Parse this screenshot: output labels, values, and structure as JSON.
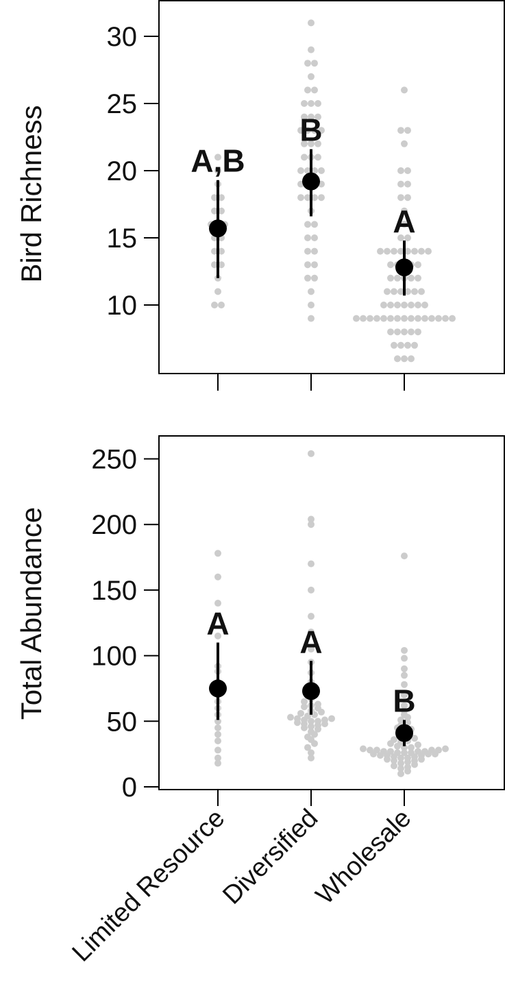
{
  "chart_data": [
    {
      "type": "scatter",
      "title": "",
      "ylabel": "Bird Richness",
      "ylim": [
        5,
        32
      ],
      "yticks": [
        10,
        15,
        20,
        25,
        30
      ],
      "categories": [
        "Limited Resource",
        "Diversified",
        "Wholesale"
      ],
      "point_color": "#cccccc",
      "summary_color": "#000000",
      "series": [
        {
          "category": "Limited Resource",
          "mean": 15.7,
          "lower": 12.0,
          "upper": 19.3,
          "letter": "A,B",
          "points": [
            10,
            10,
            11,
            12,
            13,
            13,
            14,
            14,
            15,
            15,
            16,
            16,
            16,
            17,
            17,
            18,
            18,
            19,
            20,
            21
          ]
        },
        {
          "category": "Diversified",
          "mean": 19.2,
          "lower": 16.6,
          "upper": 21.6,
          "letter": "B",
          "points": [
            9,
            10,
            11,
            12,
            12,
            13,
            13,
            14,
            14,
            15,
            15,
            16,
            16,
            17,
            18,
            18,
            18,
            18,
            19,
            19,
            19,
            19,
            20,
            20,
            20,
            20,
            21,
            21,
            21,
            22,
            22,
            22,
            23,
            23,
            23,
            23,
            24,
            24,
            24,
            25,
            25,
            25,
            26,
            26,
            27,
            28,
            28,
            29,
            31
          ]
        },
        {
          "category": "Wholesale",
          "mean": 12.8,
          "lower": 10.7,
          "upper": 14.8,
          "letter": "A",
          "points": [
            6,
            6,
            6,
            7,
            7,
            7,
            7,
            8,
            8,
            8,
            8,
            8,
            9,
            9,
            9,
            9,
            9,
            9,
            9,
            9,
            9,
            9,
            9,
            9,
            9,
            9,
            9,
            10,
            10,
            10,
            10,
            10,
            10,
            10,
            11,
            11,
            11,
            11,
            11,
            11,
            12,
            12,
            12,
            12,
            12,
            13,
            13,
            13,
            13,
            13,
            14,
            14,
            14,
            14,
            14,
            14,
            14,
            14,
            15,
            15,
            16,
            17,
            18,
            18,
            19,
            19,
            20,
            20,
            22,
            23,
            23,
            26
          ]
        }
      ]
    },
    {
      "type": "scatter",
      "title": "",
      "ylabel": "Total Abundance",
      "ylim": [
        -5,
        265
      ],
      "yticks": [
        0,
        50,
        100,
        150,
        200,
        250
      ],
      "categories": [
        "Limited Resource",
        "Diversified",
        "Wholesale"
      ],
      "point_color": "#cccccc",
      "summary_color": "#000000",
      "series": [
        {
          "category": "Limited Resource",
          "mean": 75,
          "lower": 51,
          "upper": 110,
          "letter": "A",
          "points": [
            18,
            22,
            28,
            35,
            40,
            45,
            50,
            55,
            60,
            65,
            70,
            75,
            80,
            88,
            92,
            115,
            140,
            160,
            178
          ]
        },
        {
          "category": "Diversified",
          "mean": 73,
          "lower": 55,
          "upper": 96,
          "letter": "A",
          "points": [
            22,
            26,
            30,
            33,
            36,
            38,
            40,
            42,
            44,
            45,
            46,
            47,
            48,
            48,
            49,
            50,
            50,
            51,
            51,
            52,
            52,
            53,
            54,
            55,
            56,
            57,
            58,
            60,
            61,
            62,
            63,
            65,
            67,
            70,
            74,
            80,
            87,
            95,
            105,
            118,
            130,
            150,
            170,
            200,
            204,
            254
          ]
        },
        {
          "category": "Wholesale",
          "mean": 41,
          "lower": 31,
          "upper": 51,
          "letter": "B",
          "points": [
            10,
            12,
            14,
            15,
            16,
            17,
            18,
            19,
            20,
            20,
            21,
            21,
            22,
            22,
            23,
            23,
            24,
            24,
            24,
            25,
            25,
            25,
            26,
            26,
            26,
            27,
            27,
            27,
            27,
            28,
            28,
            28,
            28,
            29,
            29,
            30,
            30,
            31,
            32,
            33,
            34,
            35,
            36,
            37,
            38,
            40,
            42,
            44,
            45,
            47,
            49,
            51,
            53,
            55,
            58,
            62,
            70,
            78,
            85,
            90,
            98,
            104,
            176
          ]
        }
      ]
    }
  ]
}
